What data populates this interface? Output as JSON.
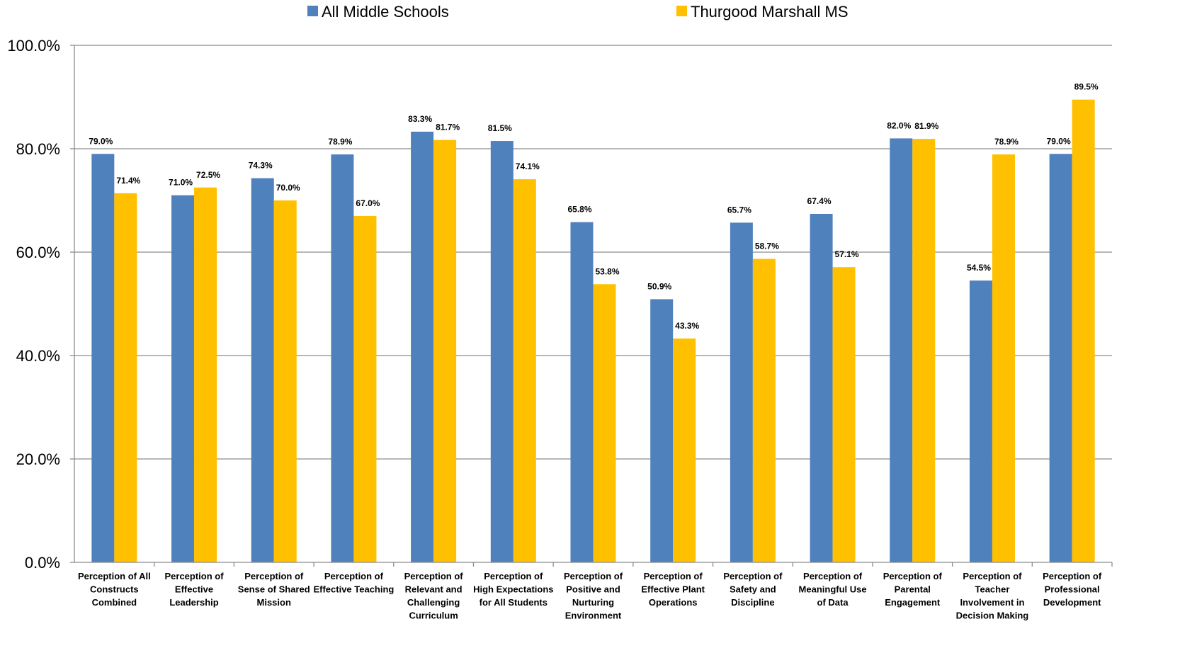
{
  "chart_data": {
    "type": "bar",
    "categories": [
      [
        "Perception of All",
        "Constructs",
        "Combined"
      ],
      [
        "Perception of",
        "Effective",
        "Leadership"
      ],
      [
        "Perception of",
        "Sense of Shared",
        "Mission"
      ],
      [
        "Perception of",
        "Effective Teaching"
      ],
      [
        "Perception of",
        "Relevant and",
        "Challenging",
        "Curriculum"
      ],
      [
        "Perception of",
        "High Expectations",
        "for All Students"
      ],
      [
        "Perception of",
        "Positive and",
        "Nurturing",
        "Environment"
      ],
      [
        "Perception of",
        "Effective Plant",
        "Operations"
      ],
      [
        "Perception of",
        "Safety and",
        "Discipline"
      ],
      [
        "Perception of",
        "Meaningful Use",
        "of Data"
      ],
      [
        "Perception of",
        "Parental",
        "Engagement"
      ],
      [
        "Perception of",
        "Teacher",
        "Involvement in",
        "Decision Making"
      ],
      [
        "Perception of",
        "Professional",
        "Development"
      ]
    ],
    "series": [
      {
        "name": "All Middle Schools",
        "color": "#4F81BD",
        "values": [
          79.0,
          71.0,
          74.3,
          78.9,
          83.3,
          81.5,
          65.8,
          50.9,
          65.7,
          67.4,
          82.0,
          54.5,
          79.0
        ],
        "labels": [
          "79.0%",
          "71.0%",
          "74.3%",
          "78.9%",
          "83.3%",
          "81.5%",
          "65.8%",
          "50.9%",
          "65.7%",
          "67.4%",
          "82.0%",
          "54.5%",
          "79.0%"
        ]
      },
      {
        "name": "Thurgood Marshall MS",
        "color": "#FFC000",
        "values": [
          71.4,
          72.5,
          70.0,
          67.0,
          81.7,
          74.1,
          53.8,
          43.3,
          58.7,
          57.1,
          81.9,
          78.9,
          89.5
        ],
        "labels": [
          "71.4%",
          "72.5%",
          "70.0%",
          "67.0%",
          "81.7%",
          "74.1%",
          "53.8%",
          "43.3%",
          "58.7%",
          "57.1%",
          "81.9%",
          "78.9%",
          "89.5%"
        ]
      }
    ],
    "yticks": [
      "0.0%",
      "20.0%",
      "40.0%",
      "60.0%",
      "80.0%",
      "100.0%"
    ],
    "ylim": [
      0,
      100
    ],
    "grid": true,
    "legend": "top"
  }
}
